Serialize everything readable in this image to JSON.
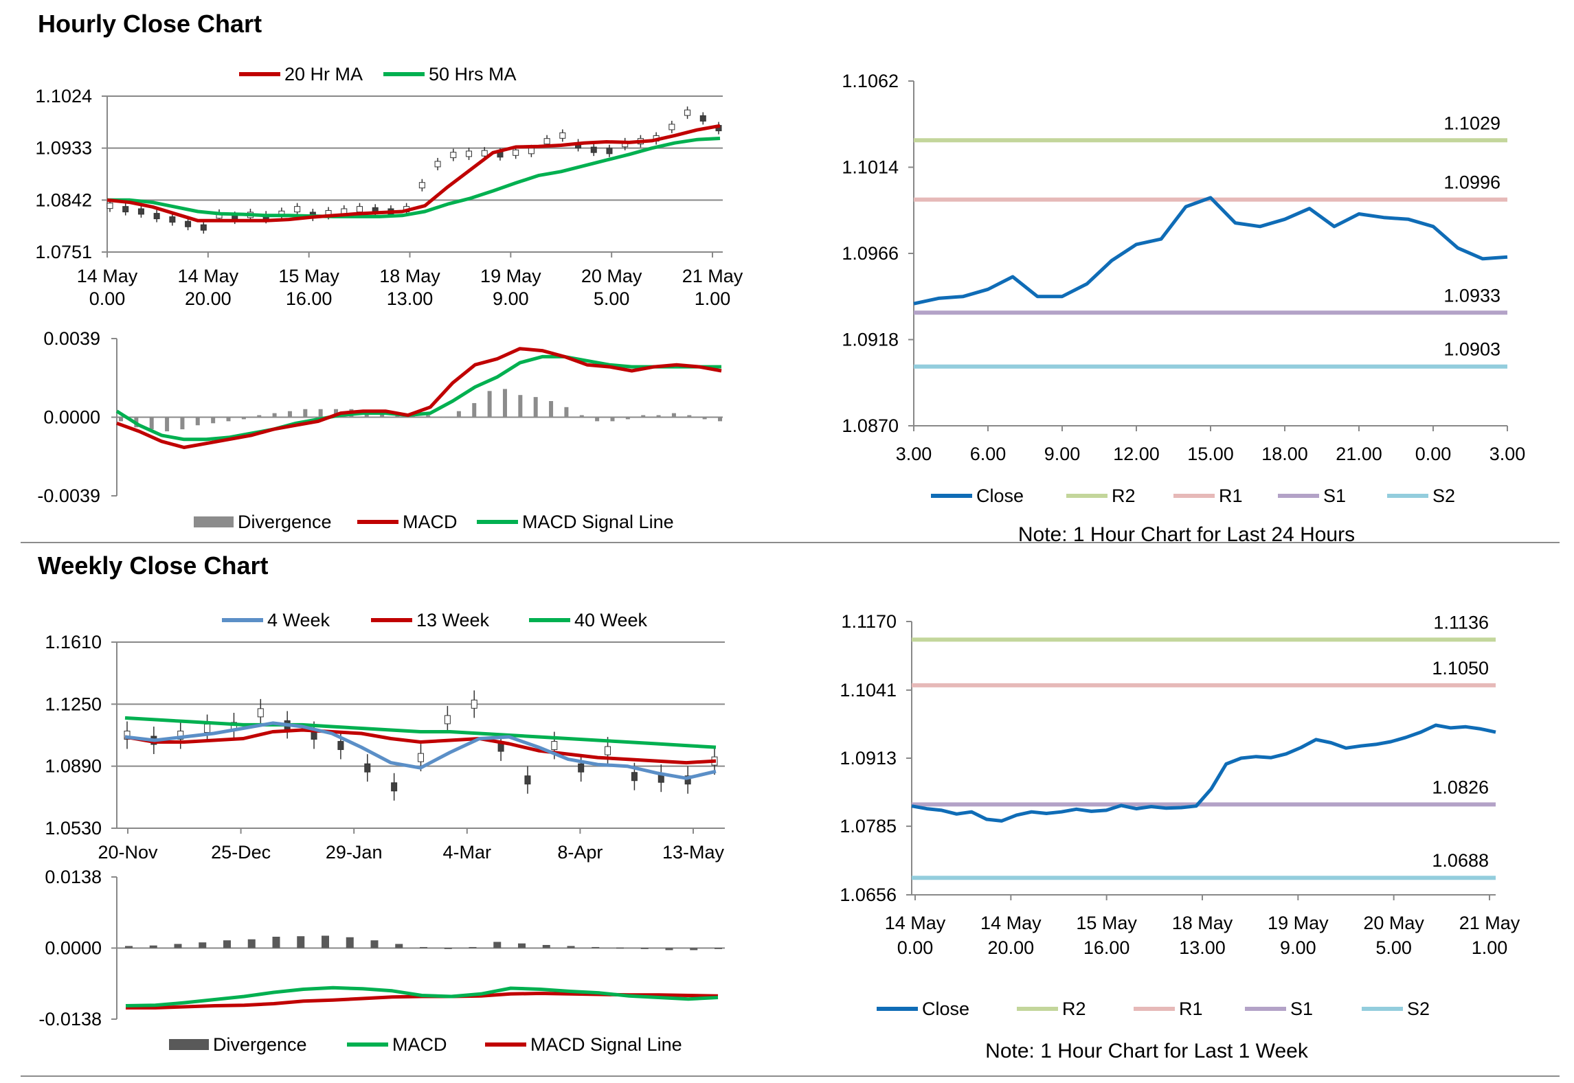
{
  "sections": {
    "hourly_title": "Hourly Close Chart",
    "weekly_title": "Weekly Close Chart"
  },
  "colors": {
    "ma20": "#c00000",
    "ma50": "#00b050",
    "close": "#0f6cb6",
    "r2": "#c3d69b",
    "r1": "#e6b9b8",
    "s1": "#b3a2c7",
    "s2": "#93cddd",
    "grey_bar": "#8c8c8c",
    "dark_bar": "#595959",
    "wk4": "#5b8fc7"
  },
  "chart_data": [
    {
      "id": "hourly_price",
      "type": "candlestick",
      "legend": [
        "20 Hr MA",
        "50 Hrs MA"
      ],
      "y_ticks": [
        "1.1024",
        "1.0933",
        "1.0842",
        "1.0751"
      ],
      "ylim": [
        1.0751,
        1.1024
      ],
      "x_ticks": [
        [
          "14 May",
          "0.00"
        ],
        [
          "14 May",
          "20.00"
        ],
        [
          "15 May",
          "16.00"
        ],
        [
          "18 May",
          "13.00"
        ],
        [
          "19 May",
          "9.00"
        ],
        [
          "20 May",
          "5.00"
        ],
        [
          "21 May",
          "1.00"
        ]
      ],
      "ma20": [
        1.0842,
        1.0838,
        1.083,
        1.0818,
        1.0806,
        1.0806,
        1.0806,
        1.0806,
        1.0808,
        1.0812,
        1.0815,
        1.0818,
        1.082,
        1.0822,
        1.0832,
        1.0865,
        1.0895,
        1.0925,
        1.0935,
        1.0936,
        1.0938,
        1.0942,
        1.0944,
        1.0943,
        1.0946,
        1.0955,
        1.0965,
        1.0972
      ],
      "ma50": [
        1.0842,
        1.0842,
        1.0838,
        1.083,
        1.0822,
        1.0818,
        1.0817,
        1.0815,
        1.0815,
        1.0814,
        1.0813,
        1.0813,
        1.0813,
        1.0815,
        1.0822,
        1.0835,
        1.0845,
        1.0858,
        1.0872,
        1.0885,
        1.0892,
        1.0902,
        1.0912,
        1.0922,
        1.0933,
        1.0942,
        1.0948,
        1.095
      ],
      "candles": [
        1.0832,
        1.0826,
        1.0822,
        1.0814,
        1.0808,
        1.08,
        1.0794,
        1.0815,
        1.0811,
        1.0816,
        1.0812,
        1.0818,
        1.0826,
        1.0816,
        1.0819,
        1.0822,
        1.0826,
        1.0824,
        1.0822,
        1.0826,
        1.0868,
        1.0905,
        1.0921,
        1.0923,
        1.0924,
        1.0922,
        1.0925,
        1.0928,
        1.0945,
        1.0955,
        1.0938,
        1.093,
        1.0928,
        1.094,
        1.0945,
        1.095,
        1.097,
        1.0995,
        1.0985,
        1.0968
      ]
    },
    {
      "id": "hourly_macd",
      "type": "bar+line",
      "legend": [
        "Divergence",
        "MACD",
        "MACD Signal Line"
      ],
      "y_ticks": [
        "0.0039",
        "0.0000",
        "-0.0039"
      ],
      "ylim": [
        -0.0039,
        0.0039
      ],
      "macd": [
        -0.0003,
        -0.0007,
        -0.0012,
        -0.0015,
        -0.0013,
        -0.0011,
        -0.0009,
        -0.0006,
        -0.0004,
        -0.0002,
        0.0002,
        0.0003,
        0.0003,
        0.0001,
        0.0005,
        0.0017,
        0.0026,
        0.0029,
        0.0034,
        0.0033,
        0.003,
        0.0026,
        0.0025,
        0.0023,
        0.0025,
        0.0026,
        0.0025,
        0.0023
      ],
      "signal": [
        0.0003,
        -0.0004,
        -0.0009,
        -0.0011,
        -0.0011,
        -0.001,
        -0.0008,
        -0.0006,
        -0.0003,
        -0.0001,
        0.0001,
        0.0002,
        0.0002,
        0.0001,
        0.0002,
        0.0008,
        0.0015,
        0.002,
        0.0027,
        0.003,
        0.003,
        0.0028,
        0.0026,
        0.0025,
        0.0025,
        0.0025,
        0.0025,
        0.0025
      ],
      "divergence": [
        -0.0002,
        -0.0005,
        -0.0006,
        -0.0007,
        -0.0006,
        -0.0004,
        -0.0003,
        -0.0002,
        -0.0001,
        0.0001,
        0.0002,
        0.0003,
        0.0004,
        0.0004,
        0.0004,
        0.0004,
        0.0003,
        0.0002,
        0.0002,
        0.0001,
        0.0001,
        0.0,
        0.0003,
        0.0007,
        0.0013,
        0.0014,
        0.0011,
        0.001,
        0.0008,
        0.0005,
        0.0001,
        -0.0002,
        -0.0002,
        -0.0001,
        0.0001,
        0.0001,
        0.0002,
        0.0001,
        -0.0001,
        -0.0002
      ]
    },
    {
      "id": "hourly_24h",
      "type": "line",
      "legend": [
        "Close",
        "R2",
        "R1",
        "S1",
        "S2"
      ],
      "y_ticks": [
        "1.1062",
        "1.1014",
        "1.0966",
        "1.0918",
        "1.0870"
      ],
      "ylim": [
        1.087,
        1.1062
      ],
      "x_ticks": [
        "3.00",
        "6.00",
        "9.00",
        "12.00",
        "15.00",
        "18.00",
        "21.00",
        "0.00",
        "3.00"
      ],
      "levels": {
        "R2": 1.1029,
        "R1": 1.0996,
        "S1": 1.0933,
        "S2": 1.0903
      },
      "level_labels": {
        "R2": "1.1029",
        "R1": "1.0996",
        "S1": "1.0933",
        "S2": "1.0903"
      },
      "close": [
        1.0938,
        1.0941,
        1.0942,
        1.0946,
        1.0953,
        1.0942,
        1.0942,
        1.0949,
        1.0962,
        1.0971,
        1.0974,
        1.0992,
        1.0997,
        1.0983,
        1.0981,
        1.0985,
        1.0991,
        1.0981,
        1.0988,
        1.0986,
        1.0985,
        1.0981,
        1.0969,
        1.0963,
        1.0964
      ],
      "note": "Note: 1 Hour Chart for Last 24 Hours"
    },
    {
      "id": "weekly_price",
      "type": "candlestick",
      "legend": [
        "4 Week",
        "13 Week",
        "40 Week"
      ],
      "y_ticks": [
        "1.1610",
        "1.1250",
        "1.0890",
        "1.0530"
      ],
      "ylim": [
        1.053,
        1.161
      ],
      "x_ticks": [
        "20-Nov",
        "25-Dec",
        "29-Jan",
        "4-Mar",
        "8-Apr",
        "13-May"
      ],
      "wk4": [
        1.106,
        1.104,
        1.106,
        1.108,
        1.111,
        1.114,
        1.112,
        1.108,
        1.1,
        1.091,
        1.088,
        1.097,
        1.105,
        1.106,
        1.1,
        1.093,
        1.09,
        1.089,
        1.085,
        1.082,
        1.086
      ],
      "wk13": [
        1.106,
        1.103,
        1.103,
        1.104,
        1.105,
        1.109,
        1.11,
        1.109,
        1.108,
        1.105,
        1.103,
        1.104,
        1.105,
        1.102,
        1.098,
        1.096,
        1.094,
        1.093,
        1.092,
        1.091,
        1.092
      ],
      "wk40": [
        1.117,
        1.116,
        1.115,
        1.114,
        1.113,
        1.113,
        1.113,
        1.112,
        1.111,
        1.11,
        1.109,
        1.109,
        1.108,
        1.107,
        1.106,
        1.105,
        1.104,
        1.103,
        1.102,
        1.101,
        1.1
      ],
      "candles": [
        1.107,
        1.104,
        1.107,
        1.111,
        1.112,
        1.12,
        1.113,
        1.107,
        1.101,
        1.088,
        1.077,
        1.094,
        1.116,
        1.125,
        1.1,
        1.081,
        1.101,
        1.088,
        1.098,
        1.083,
        1.082,
        1.081,
        1.092
      ]
    },
    {
      "id": "weekly_macd",
      "type": "bar+line",
      "legend": [
        "Divergence",
        "MACD",
        "MACD Signal Line"
      ],
      "y_ticks": [
        "0.0138",
        "0.0000",
        "-0.0138"
      ],
      "ylim": [
        -0.0138,
        0.0138
      ],
      "macd": [
        -0.0112,
        -0.0111,
        -0.0106,
        -0.01,
        -0.0094,
        -0.0086,
        -0.008,
        -0.0077,
        -0.0079,
        -0.0083,
        -0.0092,
        -0.0094,
        -0.0089,
        -0.0078,
        -0.008,
        -0.0084,
        -0.0087,
        -0.0093,
        -0.0096,
        -0.0099,
        -0.0096
      ],
      "signal": [
        -0.0116,
        -0.0116,
        -0.0114,
        -0.0112,
        -0.0111,
        -0.0108,
        -0.0103,
        -0.0101,
        -0.0098,
        -0.0095,
        -0.0094,
        -0.0094,
        -0.0093,
        -0.0089,
        -0.0088,
        -0.0089,
        -0.009,
        -0.0091,
        -0.0091,
        -0.0092,
        -0.0093
      ],
      "divergence": [
        0.0004,
        0.0005,
        0.0008,
        0.0011,
        0.0015,
        0.0017,
        0.0022,
        0.0023,
        0.0024,
        0.0021,
        0.0015,
        0.0008,
        0.0002,
        -0.0001,
        0.0002,
        0.0012,
        0.0009,
        0.0006,
        0.0004,
        0.0002,
        0.0001,
        -0.0002,
        -0.0004,
        -0.0004,
        -0.0002
      ],
      "note": ""
    },
    {
      "id": "weekly_1w",
      "type": "line",
      "legend": [
        "Close",
        "R2",
        "R1",
        "S1",
        "S2"
      ],
      "y_ticks": [
        "1.1170",
        "1.1041",
        "1.0913",
        "1.0785",
        "1.0656"
      ],
      "ylim": [
        1.0656,
        1.117
      ],
      "x_ticks": [
        [
          "14 May",
          "0.00"
        ],
        [
          "14 May",
          "20.00"
        ],
        [
          "15 May",
          "16.00"
        ],
        [
          "18 May",
          "13.00"
        ],
        [
          "19 May",
          "9.00"
        ],
        [
          "20 May",
          "5.00"
        ],
        [
          "21 May",
          "1.00"
        ]
      ],
      "levels": {
        "R2": 1.1136,
        "R1": 1.105,
        "S1": 1.0826,
        "S2": 1.0688
      },
      "level_labels": {
        "R2": "1.1136",
        "R1": "1.1050",
        "S1": "1.0826",
        "S2": "1.0688"
      },
      "close": [
        1.0823,
        1.0818,
        1.0815,
        1.0808,
        1.0812,
        1.0798,
        1.0795,
        1.0806,
        1.0812,
        1.0809,
        1.0812,
        1.0817,
        1.0813,
        1.0815,
        1.0824,
        1.0818,
        1.0822,
        1.0819,
        1.082,
        1.0823,
        1.0855,
        1.0902,
        1.0913,
        1.0916,
        1.0914,
        1.0921,
        1.0933,
        1.0948,
        1.0942,
        1.0932,
        1.0936,
        1.0939,
        1.0944,
        1.0952,
        1.0962,
        1.0975,
        1.097,
        1.0972,
        1.0968,
        1.0962
      ],
      "note": "Note: 1 Hour Chart for Last 1 Week"
    }
  ]
}
